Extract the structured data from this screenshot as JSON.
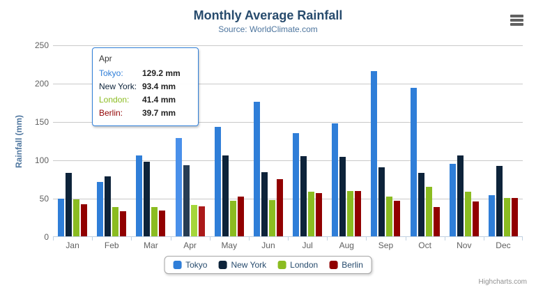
{
  "header": {
    "title": "Monthly Average Rainfall",
    "subtitle": "Source: WorldClimate.com"
  },
  "icons": {
    "context_menu": "hamburger-icon"
  },
  "chart_data": {
    "type": "bar",
    "orientation": "vertical-grouped-columns",
    "title": "Monthly Average Rainfall",
    "subtitle": "Source: WorldClimate.com",
    "xlabel": "",
    "ylabel": "Rainfall (mm)",
    "ylim": [
      0,
      250
    ],
    "y_tick_interval": 50,
    "y_ticks": [
      0,
      50,
      100,
      150,
      200,
      250
    ],
    "grid": true,
    "legend_position": "bottom-center",
    "categories": [
      "Jan",
      "Feb",
      "Mar",
      "Apr",
      "May",
      "Jun",
      "Jul",
      "Aug",
      "Sep",
      "Oct",
      "Nov",
      "Dec"
    ],
    "hovered_category": "Apr",
    "hovered_index": 3,
    "value_suffix": " mm",
    "series": [
      {
        "name": "Tokyo",
        "color": "#2f7ed8",
        "hover_color": "#4a90ea",
        "values": [
          49.9,
          71.5,
          106.4,
          129.2,
          144.0,
          176.0,
          135.6,
          148.5,
          216.4,
          194.1,
          95.6,
          54.4
        ]
      },
      {
        "name": "New York",
        "color": "#0d233a",
        "hover_color": "#273d54",
        "values": [
          83.6,
          78.8,
          98.5,
          93.4,
          106.0,
          84.5,
          105.0,
          104.3,
          91.2,
          83.5,
          106.6,
          92.3
        ]
      },
      {
        "name": "London",
        "color": "#8bbc21",
        "hover_color": "#a5d63b",
        "values": [
          48.9,
          38.8,
          39.3,
          41.4,
          47.0,
          48.3,
          59.0,
          59.6,
          52.4,
          65.2,
          59.3,
          51.2
        ]
      },
      {
        "name": "Berlin",
        "color": "#910000",
        "hover_color": "#ab1a1a",
        "values": [
          42.4,
          33.2,
          34.5,
          39.7,
          52.6,
          75.5,
          57.4,
          60.4,
          47.6,
          39.1,
          46.8,
          51.1
        ]
      }
    ]
  },
  "tooltip": {
    "header": "Apr",
    "rows": [
      {
        "label": "Tokyo:",
        "value": "129.2 mm",
        "color": "#2f7ed8"
      },
      {
        "label": "New York:",
        "value": "93.4 mm",
        "color": "#0d233a"
      },
      {
        "label": "London:",
        "value": "41.4 mm",
        "color": "#8bbc21"
      },
      {
        "label": "Berlin:",
        "value": "39.7 mm",
        "color": "#910000"
      }
    ]
  },
  "credits": "Highcharts.com",
  "colors": {
    "title_text": "#274b6d",
    "subtitle_text": "#4d759e",
    "axis_label_text": "#606060",
    "gridline": "#c9c9c9",
    "axis_line": "#c0d0e0",
    "tooltip_border": "#2f7ed8",
    "legend_border": "#a6a6a6",
    "credits_text": "#909090",
    "menu_icon": "#616161"
  }
}
